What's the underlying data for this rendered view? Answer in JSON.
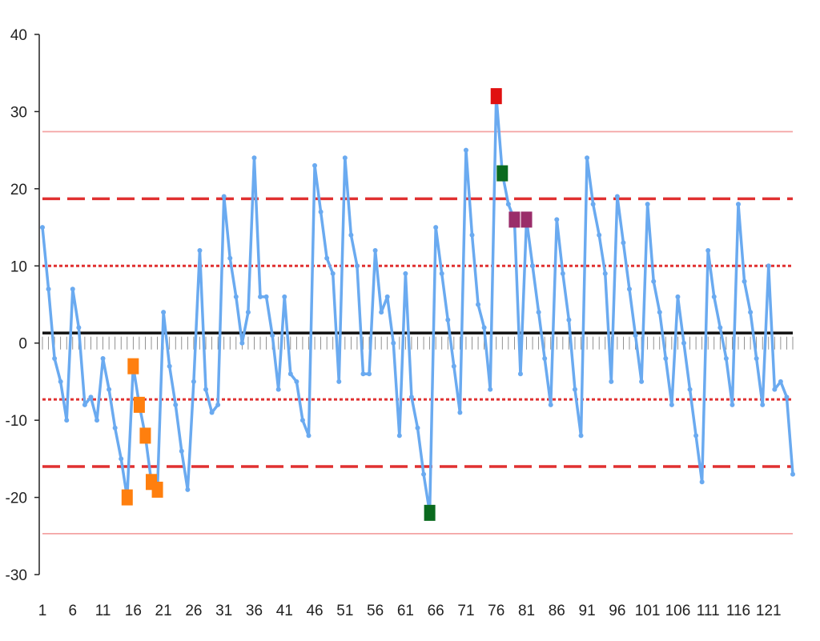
{
  "chart_data": {
    "type": "line",
    "title": "",
    "xlabel": "",
    "ylabel": "",
    "xlim": [
      1,
      125
    ],
    "ylim": [
      -30,
      40
    ],
    "y_ticks": [
      40,
      30,
      20,
      10,
      0,
      -10,
      -20,
      -30
    ],
    "y_tick_labels": [
      "40",
      "30",
      "20",
      "10",
      "0",
      "-10",
      "-20",
      "-30"
    ],
    "x_ticks": [
      1,
      6,
      11,
      16,
      21,
      26,
      31,
      36,
      41,
      46,
      51,
      56,
      61,
      66,
      71,
      76,
      81,
      86,
      91,
      96,
      101,
      106,
      111,
      116,
      121
    ],
    "x_tick_labels": [
      "1",
      "6",
      "11",
      "16",
      "21",
      "26",
      "31",
      "36",
      "41",
      "46",
      "51",
      "56",
      "61",
      "66",
      "71",
      "76",
      "81",
      "86",
      "91",
      "96",
      "101",
      "106",
      "111",
      "116",
      "121"
    ],
    "grid": false,
    "legend": "none",
    "series": [
      {
        "color": "#6aaaf0",
        "values": [
          15,
          7,
          -2,
          -5,
          -10,
          7,
          2,
          -8,
          -7,
          -10,
          -2,
          -6,
          -11,
          -15,
          -20,
          -3,
          -8,
          -12,
          -18,
          -19,
          4,
          -3,
          -8,
          -14,
          -19,
          -5,
          12,
          -6,
          -9,
          -8,
          19,
          11,
          6,
          0,
          4,
          24,
          6,
          6,
          1,
          -6,
          6,
          -4,
          -5,
          -10,
          -12,
          23,
          17,
          11,
          9,
          -5,
          24,
          14,
          10,
          -4,
          -4,
          12,
          4,
          6,
          0,
          -12,
          9,
          -7,
          -11,
          -17,
          -22,
          15,
          9,
          3,
          -3,
          -9,
          25,
          14,
          5,
          2,
          -6,
          32,
          22,
          18,
          16,
          -4,
          16,
          10,
          4,
          -2,
          -8,
          16,
          9,
          3,
          -6,
          -12,
          24,
          18,
          14,
          9,
          -5,
          19,
          13,
          7,
          1,
          -5,
          18,
          8,
          4,
          -2,
          -8,
          6,
          0,
          -6,
          -12,
          -18,
          12,
          6,
          2,
          -2,
          -8,
          18,
          8,
          4,
          -2,
          -8,
          10,
          -6,
          -5,
          -7,
          -17
        ]
      }
    ],
    "reference_lines": [
      {
        "kind": "center",
        "y": 1.3,
        "color": "#111111",
        "style": "solid"
      },
      {
        "kind": "upper-3-sigma",
        "y": 27.4,
        "color": "#f4a3a3",
        "style": "solid"
      },
      {
        "kind": "upper-2-sigma",
        "y": 18.7,
        "color": "#e03030",
        "style": "long-dash"
      },
      {
        "kind": "upper-1-sigma",
        "y": 10,
        "color": "#e03030",
        "style": "dotted"
      },
      {
        "kind": "lower-1-sigma",
        "y": -7.3,
        "color": "#e03030",
        "style": "dotted"
      },
      {
        "kind": "lower-2-sigma",
        "y": -16,
        "color": "#e03030",
        "style": "long-dash"
      },
      {
        "kind": "lower-3-sigma",
        "y": -24.7,
        "color": "#f4a3a3",
        "style": "solid"
      }
    ],
    "highlighted_points": [
      {
        "x": 15,
        "y": -20,
        "color": "#ff7f0e"
      },
      {
        "x": 16,
        "y": -3,
        "color": "#ff7f0e"
      },
      {
        "x": 17,
        "y": -8,
        "color": "#ff7f0e"
      },
      {
        "x": 18,
        "y": -12,
        "color": "#ff7f0e"
      },
      {
        "x": 19,
        "y": -18,
        "color": "#ff7f0e"
      },
      {
        "x": 20,
        "y": -19,
        "color": "#ff7f0e"
      },
      {
        "x": 65,
        "y": -22,
        "color": "#0a6a1e"
      },
      {
        "x": 76,
        "y": 32,
        "color": "#e01010"
      },
      {
        "x": 77,
        "y": 22,
        "color": "#0a6a1e"
      },
      {
        "x": 79,
        "y": 16,
        "color": "#9a2d6a"
      },
      {
        "x": 81,
        "y": 16,
        "color": "#9a2d6a"
      }
    ]
  }
}
